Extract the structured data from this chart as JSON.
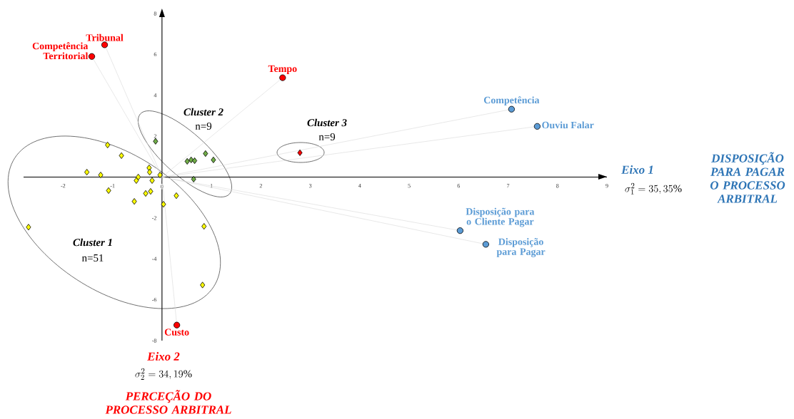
{
  "chart_data": {
    "type": "scatter",
    "xlabel": "Eixo 1",
    "xlim": [
      -2.8,
      9
    ],
    "ylim": [
      -8,
      8
    ],
    "xticks": [
      -2,
      -1,
      0,
      1,
      2,
      3,
      4,
      5,
      6,
      7,
      8,
      9
    ],
    "yticks": [
      -8,
      -6,
      -4,
      -2,
      2,
      4,
      6,
      8
    ],
    "marker": "diamond",
    "series": [
      {
        "type": "line",
        "marker": "none",
        "color": "#d9d9d9",
        "x": [
          0,
          -1.16
        ],
        "values": [
          0,
          6.47
        ]
      },
      {
        "type": "line",
        "marker": "none",
        "color": "#d9d9d9",
        "x": [
          0,
          -1.42
        ],
        "values": [
          0,
          5.9
        ]
      },
      {
        "type": "line",
        "marker": "none",
        "color": "#d9d9d9",
        "x": [
          0,
          2.44
        ],
        "values": [
          0,
          4.86
        ]
      },
      {
        "type": "line",
        "marker": "none",
        "color": "#d9d9d9",
        "x": [
          0,
          0.3
        ],
        "values": [
          0,
          -7.24
        ]
      },
      {
        "type": "line",
        "marker": "none",
        "color": "#d9d9d9",
        "x": [
          0,
          7.07
        ],
        "values": [
          0,
          3.32
        ]
      },
      {
        "type": "line",
        "marker": "none",
        "color": "#d9d9d9",
        "x": [
          0,
          7.59
        ],
        "values": [
          0,
          2.48
        ]
      },
      {
        "type": "line",
        "marker": "none",
        "color": "#d9d9d9",
        "x": [
          0,
          6.03
        ],
        "values": [
          0,
          -2.62
        ]
      },
      {
        "type": "line",
        "marker": "none",
        "color": "#d9d9d9",
        "x": [
          0,
          6.55
        ],
        "values": [
          0,
          -3.29
        ]
      },
      {
        "color": "#ffff00",
        "x": [
          -1.52,
          -1.24,
          -1.1,
          -0.82,
          -1.08,
          -0.48,
          -0.52,
          -0.26,
          -0.25,
          -0.2,
          -0.04,
          -0.33,
          -0.23,
          -0.56,
          0.29,
          0.03,
          -2.7,
          0.85,
          0.82
        ],
        "values": [
          0.24,
          0.1,
          1.57,
          1.05,
          -0.66,
          0,
          -0.17,
          0.45,
          0.24,
          -0.17,
          0.1,
          -0.8,
          -0.7,
          -1.19,
          -0.91,
          -1.33,
          -2.45,
          -2.41,
          -5.28
        ]
      },
      {
        "color": "#70ad47",
        "x": [
          -0.13,
          0.51,
          0.59,
          0.66,
          0.88,
          1.04,
          0.64
        ],
        "values": [
          1.75,
          0.77,
          0.84,
          0.8,
          1.15,
          0.84,
          -0.1
        ]
      },
      {
        "color": "#ff0000",
        "x": [
          2.79
        ],
        "values": [
          1.19
        ]
      },
      {
        "marker": "circle",
        "color": "#ff0000",
        "x": [
          -1.16,
          -1.42,
          2.44,
          0.3
        ],
        "values": [
          6.47,
          5.9,
          4.86,
          -7.24
        ]
      },
      {
        "marker": "circle",
        "color": "#5b9bd5",
        "x": [
          7.07,
          7.59,
          6.03,
          6.55
        ],
        "values": [
          3.32,
          2.48,
          -2.62,
          -3.29
        ]
      }
    ],
    "annotations": [
      "Cluster 1",
      "n=51",
      "Cluster 2",
      "n=9",
      "Cluster 3",
      "n=9",
      {
        "text": "Tribunal",
        "x": -1.16,
        "y": 6.47
      },
      {
        "text": "Competência Territorial",
        "x": -1.42,
        "y": 5.9
      },
      {
        "text": "Tempo",
        "x": 2.44,
        "y": 4.86
      },
      {
        "text": "Custo",
        "x": 0.3,
        "y": -7.24
      },
      {
        "text": "Competência",
        "x": 7.07,
        "y": 3.32
      },
      {
        "text": "Ouviu Falar",
        "x": 7.59,
        "y": 2.48
      },
      {
        "text": "Disposição para o Cliente Pagar",
        "x": 6.03,
        "y": -2.62
      },
      {
        "text": "Disposição para Pagar",
        "x": 6.55,
        "y": -3.29
      },
      "\\sigma_1^2 = 35,35\\%",
      "DISPOSIÇÃO PARA PAGAR O PROCESSO ARBITRAL",
      "\\sigma_2^2 = 34,19\\%",
      "PERCEÇÃO DO PROCESSO ARBITRAL",
      "Eixo 2"
    ]
  }
}
